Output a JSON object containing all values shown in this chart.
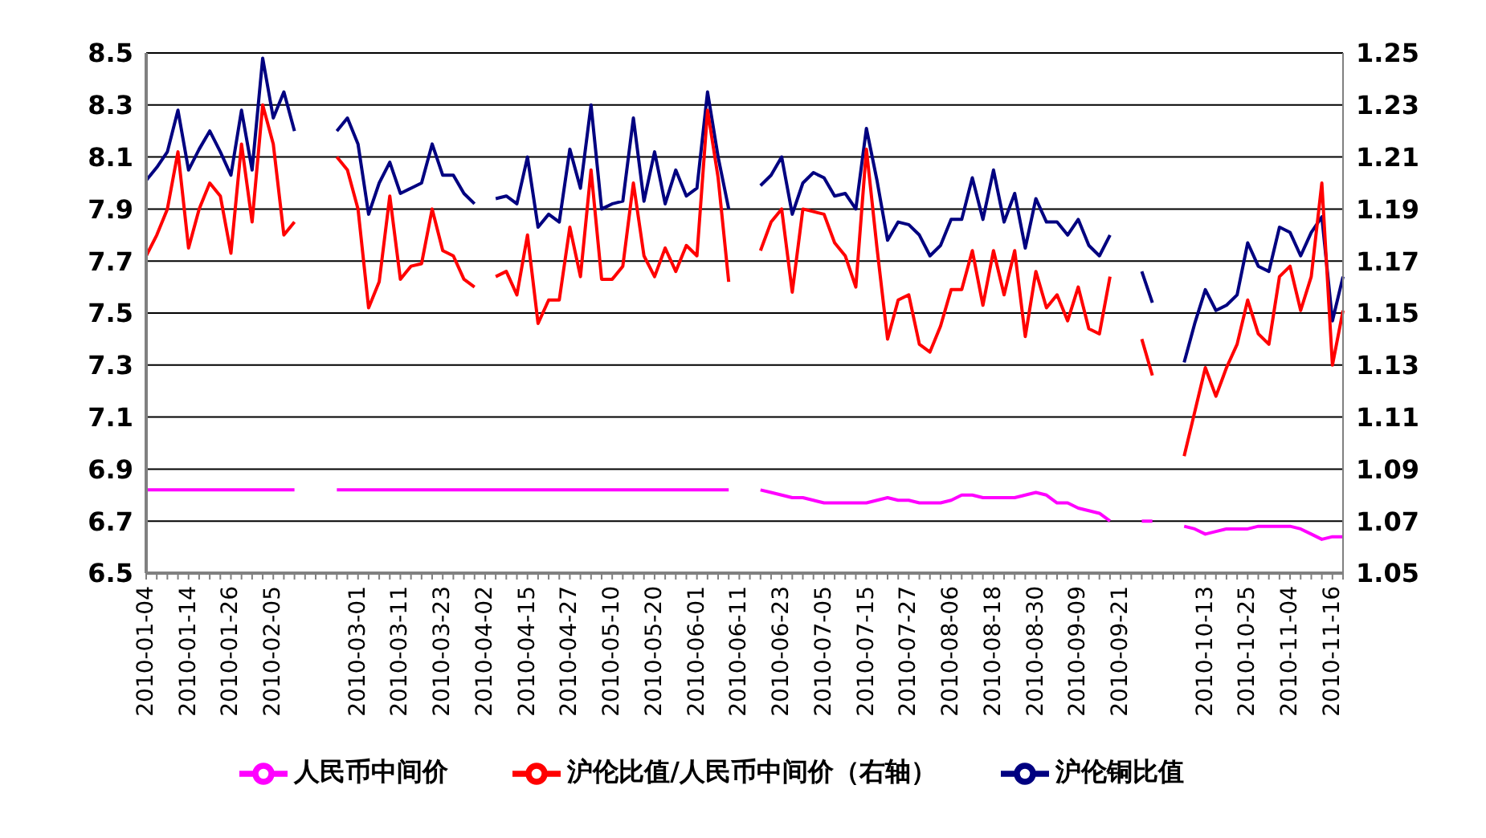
{
  "chart_data": {
    "type": "line",
    "categories": [
      "2010-01-04",
      null,
      null,
      null,
      "2010-01-14",
      null,
      null,
      null,
      "2010-01-26",
      null,
      null,
      null,
      "2010-02-05",
      null,
      null,
      null,
      null,
      null,
      null,
      null,
      "2010-03-01",
      null,
      null,
      null,
      "2010-03-11",
      null,
      null,
      null,
      "2010-03-23",
      null,
      null,
      null,
      "2010-04-02",
      null,
      null,
      null,
      "2010-04-15",
      null,
      null,
      null,
      "2010-04-27",
      null,
      null,
      null,
      "2010-05-10",
      null,
      null,
      null,
      "2010-05-20",
      null,
      null,
      null,
      "2010-06-01",
      null,
      null,
      null,
      "2010-06-11",
      null,
      null,
      null,
      "2010-06-23",
      null,
      null,
      null,
      "2010-07-05",
      null,
      null,
      null,
      "2010-07-15",
      null,
      null,
      null,
      "2010-07-27",
      null,
      null,
      null,
      "2010-08-06",
      null,
      null,
      null,
      "2010-08-18",
      null,
      null,
      null,
      "2010-08-30",
      null,
      null,
      null,
      "2010-09-09",
      null,
      null,
      null,
      "2010-09-21",
      null,
      null,
      null,
      null,
      null,
      null,
      null,
      "2010-10-13",
      null,
      null,
      null,
      "2010-10-25",
      null,
      null,
      null,
      "2010-11-04",
      null,
      null,
      null,
      "2010-11-16",
      null
    ],
    "series": [
      {
        "name": "沪伦铜比值",
        "color": "#000080",
        "values": [
          8.01,
          8.06,
          8.12,
          8.28,
          8.05,
          8.13,
          8.2,
          8.12,
          8.03,
          8.28,
          8.05,
          8.48,
          8.25,
          8.35,
          8.2,
          null,
          null,
          null,
          8.2,
          8.25,
          8.15,
          7.88,
          8.0,
          8.08,
          7.96,
          7.98,
          8.0,
          8.15,
          8.03,
          8.03,
          7.96,
          7.92,
          null,
          7.94,
          7.95,
          7.92,
          8.1,
          7.83,
          7.88,
          7.85,
          8.13,
          7.98,
          8.3,
          7.9,
          7.92,
          7.93,
          8.25,
          7.93,
          8.12,
          7.92,
          8.05,
          7.95,
          7.98,
          8.35,
          8.1,
          7.9,
          null,
          null,
          7.99,
          8.03,
          8.1,
          7.88,
          8.0,
          8.04,
          8.02,
          7.95,
          7.96,
          7.9,
          8.21,
          8.01,
          7.78,
          7.85,
          7.84,
          7.8,
          7.72,
          7.76,
          7.86,
          7.86,
          8.02,
          7.86,
          8.05,
          7.85,
          7.96,
          7.75,
          7.94,
          7.85,
          7.85,
          7.8,
          7.86,
          7.76,
          7.72,
          7.8,
          null,
          null,
          7.66,
          7.54,
          null,
          null,
          7.31,
          7.46,
          7.59,
          7.51,
          7.53,
          7.57,
          7.77,
          7.68,
          7.66,
          7.83,
          7.81,
          7.72,
          7.81,
          7.87,
          7.47,
          7.64
        ]
      },
      {
        "name": "人民币中间价",
        "color": "#ff00ff",
        "values": [
          6.82,
          6.82,
          6.82,
          6.82,
          6.82,
          6.82,
          6.82,
          6.82,
          6.82,
          6.82,
          6.82,
          6.82,
          6.82,
          6.82,
          6.82,
          null,
          null,
          null,
          6.82,
          6.82,
          6.82,
          6.82,
          6.82,
          6.82,
          6.82,
          6.82,
          6.82,
          6.82,
          6.82,
          6.82,
          6.82,
          6.82,
          6.82,
          6.82,
          6.82,
          6.82,
          6.82,
          6.82,
          6.82,
          6.82,
          6.82,
          6.82,
          6.82,
          6.82,
          6.82,
          6.82,
          6.82,
          6.82,
          6.82,
          6.82,
          6.82,
          6.82,
          6.82,
          6.82,
          6.82,
          6.82,
          null,
          null,
          6.82,
          6.81,
          6.8,
          6.79,
          6.79,
          6.78,
          6.77,
          6.77,
          6.77,
          6.77,
          6.77,
          6.78,
          6.79,
          6.78,
          6.78,
          6.77,
          6.77,
          6.77,
          6.78,
          6.8,
          6.8,
          6.79,
          6.79,
          6.79,
          6.79,
          6.8,
          6.81,
          6.8,
          6.77,
          6.77,
          6.75,
          6.74,
          6.73,
          6.7,
          null,
          null,
          6.7,
          6.7,
          null,
          null,
          6.68,
          6.67,
          6.65,
          6.66,
          6.67,
          6.67,
          6.67,
          6.68,
          6.68,
          6.68,
          6.68,
          6.67,
          6.65,
          6.63,
          6.64,
          6.64
        ]
      },
      {
        "name": "沪伦比值/人民币中间价（右轴）",
        "color": "#ff0000",
        "axis": "y2",
        "values": [
          1.172,
          1.18,
          1.19,
          1.212,
          1.175,
          1.19,
          1.2,
          1.195,
          1.173,
          1.215,
          1.185,
          1.23,
          1.215,
          1.18,
          1.185,
          null,
          null,
          null,
          1.21,
          1.205,
          1.19,
          1.152,
          1.162,
          1.195,
          1.163,
          1.168,
          1.169,
          1.19,
          1.174,
          1.172,
          1.163,
          1.16,
          null,
          1.164,
          1.166,
          1.157,
          1.18,
          1.146,
          1.155,
          1.155,
          1.183,
          1.164,
          1.205,
          1.163,
          1.163,
          1.168,
          1.2,
          1.172,
          1.164,
          1.175,
          1.166,
          1.176,
          1.172,
          1.228,
          1.202,
          1.162,
          null,
          null,
          1.174,
          1.185,
          1.19,
          1.158,
          1.19,
          1.189,
          1.188,
          1.177,
          1.172,
          1.16,
          1.213,
          1.175,
          1.14,
          1.155,
          1.157,
          1.138,
          1.135,
          1.145,
          1.159,
          1.159,
          1.174,
          1.153,
          1.174,
          1.157,
          1.174,
          1.141,
          1.166,
          1.152,
          1.157,
          1.147,
          1.16,
          1.144,
          1.142,
          1.164,
          null,
          null,
          1.14,
          1.126,
          null,
          null,
          1.095,
          1.112,
          1.129,
          1.118,
          1.129,
          1.138,
          1.155,
          1.142,
          1.138,
          1.164,
          1.168,
          1.151,
          1.164,
          1.2,
          1.13,
          1.151
        ]
      }
    ],
    "ylim": [
      6.5,
      8.5
    ],
    "yticks": [
      6.5,
      6.7,
      6.9,
      7.1,
      7.3,
      7.5,
      7.7,
      7.9,
      8.1,
      8.3,
      8.5
    ],
    "y2lim": [
      1.05,
      1.25
    ],
    "y2ticks": [
      1.05,
      1.07,
      1.09,
      1.11,
      1.13,
      1.15,
      1.17,
      1.19,
      1.21,
      1.23,
      1.25
    ],
    "grid": "y",
    "legend": "bottom",
    "marker": "none"
  }
}
